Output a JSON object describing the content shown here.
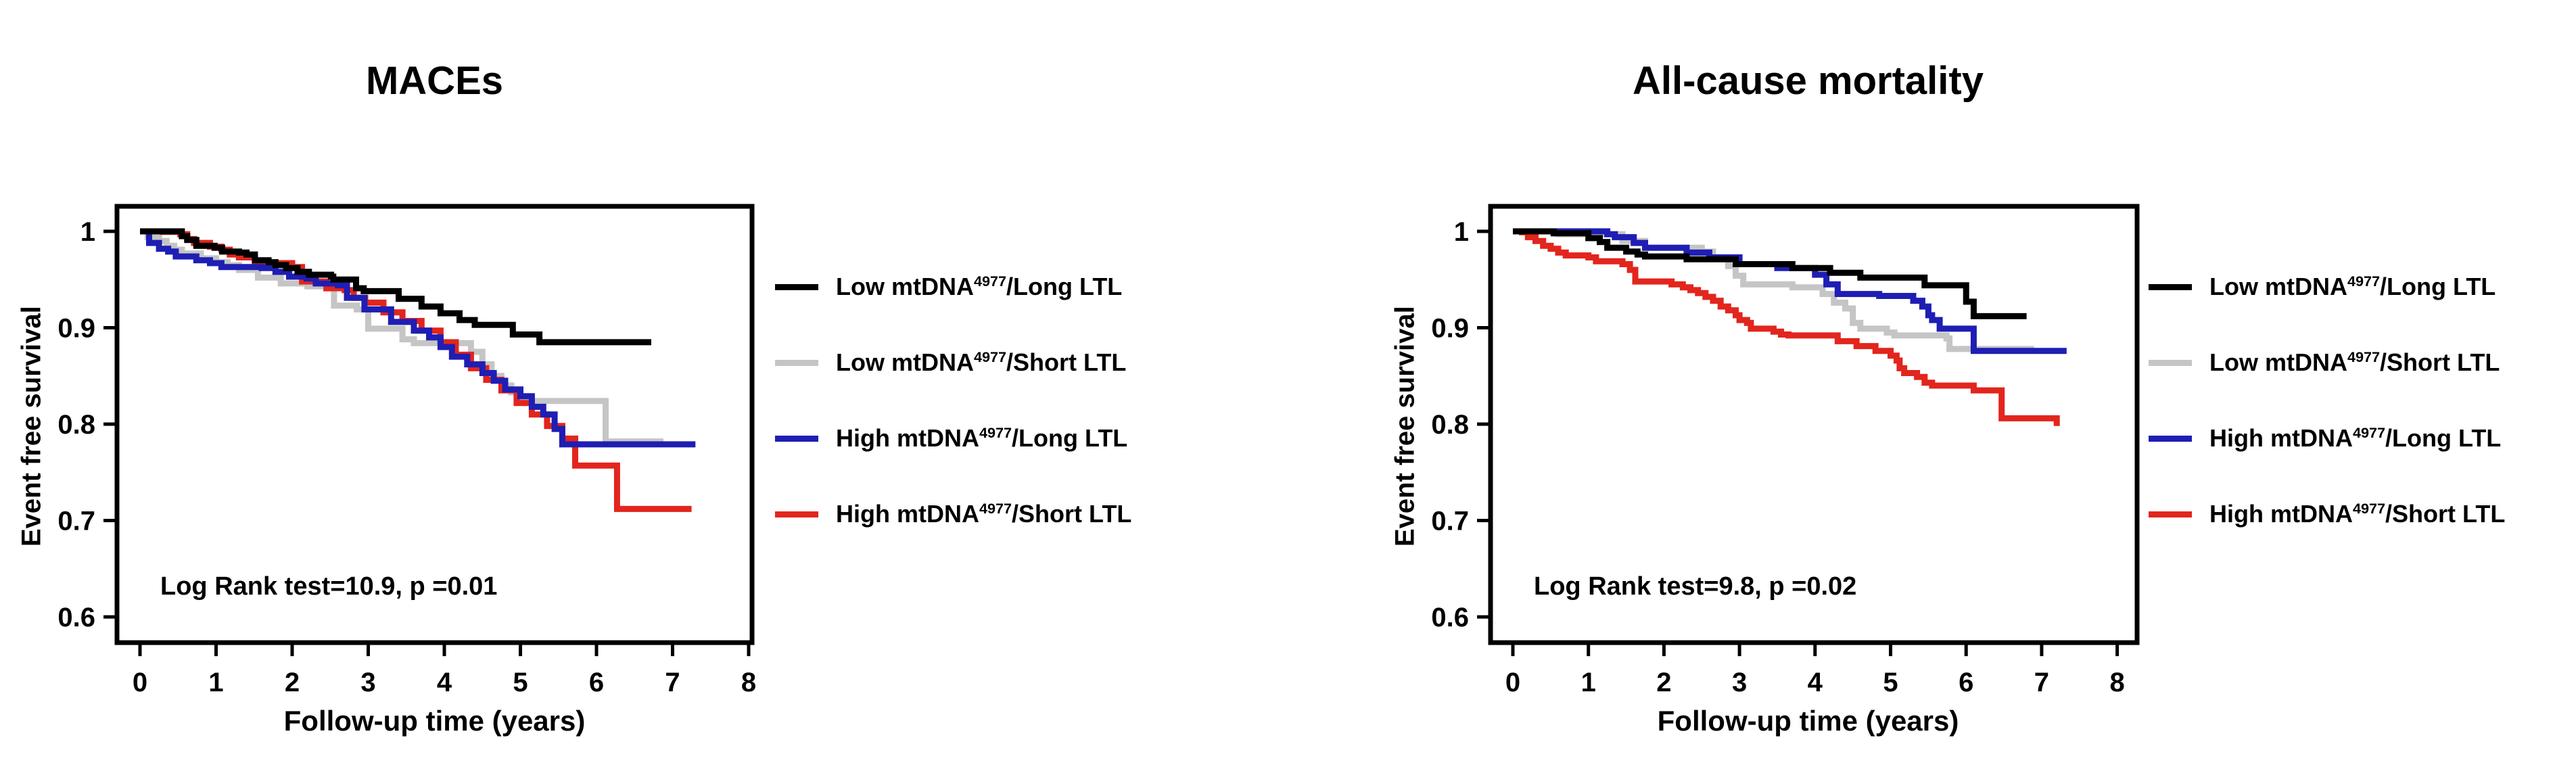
{
  "page": {
    "background": "#ffffff"
  },
  "colors": {
    "low_long": "#000000",
    "low_short": "#c5c5c5",
    "high_long": "#1e1eb4",
    "high_short": "#e2251d",
    "axis": "#000000"
  },
  "legend": {
    "items": [
      {
        "pre": "Low mtDNA",
        "sup": "4977",
        "post": "/Long LTL",
        "color": "#000000"
      },
      {
        "pre": "Low mtDNA",
        "sup": "4977",
        "post": "/Short LTL",
        "color": "#c5c5c5"
      },
      {
        "pre": "High mtDNA",
        "sup": "4977",
        "post": "/Long LTL",
        "color": "#1e1eb4"
      },
      {
        "pre": "High mtDNA",
        "sup": "4977",
        "post": "/Short LTL",
        "color": "#e2251d"
      }
    ]
  },
  "chart_data": [
    {
      "type": "line",
      "subtype": "kaplan-meier-step",
      "title": "MACEs",
      "xlabel": "Follow-up time (years)",
      "ylabel": "Event free survival",
      "annotation": "Log Rank test=10.9, p =0.01",
      "xlim": [
        0,
        8
      ],
      "ylim": [
        0.6,
        1.0
      ],
      "grid": false,
      "legend_position": "right",
      "xticks": [
        {
          "v": 0,
          "label": "0"
        },
        {
          "v": 1,
          "label": "1"
        },
        {
          "v": 2,
          "label": "2"
        },
        {
          "v": 3,
          "label": "3"
        },
        {
          "v": 4,
          "label": "4"
        },
        {
          "v": 5,
          "label": "5"
        },
        {
          "v": 6,
          "label": "6"
        },
        {
          "v": 7,
          "label": "7"
        },
        {
          "v": 8,
          "label": "8"
        }
      ],
      "yticks": [
        {
          "v": 1.0,
          "label": "1"
        },
        {
          "v": 0.9,
          "label": "0.9"
        },
        {
          "v": 0.8,
          "label": "0.8"
        },
        {
          "v": 0.7,
          "label": "0.7"
        },
        {
          "v": 0.6,
          "label": "0.6"
        }
      ],
      "series": [
        {
          "name": "Low mtDNA4977/Short LTL",
          "color": "#c5c5c5",
          "points": [
            [
              0,
              1
            ],
            [
              0.1,
              0.994
            ],
            [
              0.25,
              0.99
            ],
            [
              0.35,
              0.985
            ],
            [
              0.45,
              0.981
            ],
            [
              0.55,
              0.977
            ],
            [
              0.8,
              0.972
            ],
            [
              1.0,
              0.968
            ],
            [
              1.15,
              0.965
            ],
            [
              1.3,
              0.96
            ],
            [
              1.55,
              0.952
            ],
            [
              1.85,
              0.946
            ],
            [
              2.2,
              0.943
            ],
            [
              2.45,
              0.941
            ],
            [
              2.55,
              0.923
            ],
            [
              2.85,
              0.919
            ],
            [
              3.0,
              0.899
            ],
            [
              3.45,
              0.888
            ],
            [
              3.6,
              0.884
            ],
            [
              4.35,
              0.875
            ],
            [
              4.5,
              0.862
            ],
            [
              4.62,
              0.85
            ],
            [
              4.75,
              0.84
            ],
            [
              4.88,
              0.833
            ],
            [
              5.0,
              0.824
            ],
            [
              6.12,
              0.782
            ],
            [
              6.88,
              0.782
            ]
          ]
        },
        {
          "name": "High mtDNA4977/Short LTL",
          "color": "#e2251d",
          "points": [
            [
              0,
              1
            ],
            [
              0.3,
              0.9995
            ],
            [
              0.53,
              0.997
            ],
            [
              0.62,
              0.992
            ],
            [
              0.71,
              0.988
            ],
            [
              0.92,
              0.984
            ],
            [
              1.07,
              0.981
            ],
            [
              1.18,
              0.976
            ],
            [
              1.3,
              0.973
            ],
            [
              1.51,
              0.969
            ],
            [
              1.6,
              0.967
            ],
            [
              2.0,
              0.963
            ],
            [
              2.13,
              0.948
            ],
            [
              2.45,
              0.941
            ],
            [
              2.69,
              0.939
            ],
            [
              2.81,
              0.931
            ],
            [
              2.96,
              0.926
            ],
            [
              3.2,
              0.916
            ],
            [
              3.45,
              0.907
            ],
            [
              3.7,
              0.897
            ],
            [
              3.95,
              0.885
            ],
            [
              4.15,
              0.872
            ],
            [
              4.35,
              0.858
            ],
            [
              4.55,
              0.846
            ],
            [
              4.75,
              0.835
            ],
            [
              4.95,
              0.822
            ],
            [
              5.15,
              0.81
            ],
            [
              5.35,
              0.798
            ],
            [
              5.55,
              0.785
            ],
            [
              5.72,
              0.757
            ],
            [
              6.27,
              0.712
            ],
            [
              7.25,
              0.712
            ]
          ]
        },
        {
          "name": "High mtDNA4977/Long LTL",
          "color": "#1e1eb4",
          "points": [
            [
              0,
              1
            ],
            [
              0.12,
              0.988
            ],
            [
              0.25,
              0.982
            ],
            [
              0.37,
              0.979
            ],
            [
              0.47,
              0.974
            ],
            [
              0.74,
              0.97
            ],
            [
              0.92,
              0.967
            ],
            [
              1.07,
              0.963
            ],
            [
              1.6,
              0.962
            ],
            [
              1.78,
              0.958
            ],
            [
              1.96,
              0.953
            ],
            [
              2.19,
              0.951
            ],
            [
              2.31,
              0.946
            ],
            [
              2.6,
              0.944
            ],
            [
              2.72,
              0.931
            ],
            [
              2.95,
              0.919
            ],
            [
              3.3,
              0.906
            ],
            [
              3.6,
              0.897
            ],
            [
              3.8,
              0.89
            ],
            [
              3.95,
              0.88
            ],
            [
              4.1,
              0.87
            ],
            [
              4.3,
              0.862
            ],
            [
              4.5,
              0.853
            ],
            [
              4.65,
              0.845
            ],
            [
              4.8,
              0.836
            ],
            [
              5.0,
              0.829
            ],
            [
              5.15,
              0.818
            ],
            [
              5.3,
              0.81
            ],
            [
              5.45,
              0.795
            ],
            [
              5.55,
              0.779
            ],
            [
              7.3,
              0.779
            ]
          ]
        },
        {
          "name": "Low mtDNA4977/Long LTL",
          "color": "#000000",
          "points": [
            [
              0,
              1
            ],
            [
              0.26,
              1
            ],
            [
              0.55,
              0.995
            ],
            [
              0.62,
              0.991
            ],
            [
              0.74,
              0.985
            ],
            [
              0.98,
              0.983
            ],
            [
              1.08,
              0.979
            ],
            [
              1.3,
              0.978
            ],
            [
              1.4,
              0.976
            ],
            [
              1.51,
              0.97
            ],
            [
              1.69,
              0.968
            ],
            [
              1.78,
              0.965
            ],
            [
              1.92,
              0.962
            ],
            [
              2.07,
              0.958
            ],
            [
              2.22,
              0.955
            ],
            [
              2.51,
              0.953
            ],
            [
              2.54,
              0.95
            ],
            [
              2.84,
              0.941
            ],
            [
              2.94,
              0.938
            ],
            [
              3.4,
              0.93
            ],
            [
              3.7,
              0.922
            ],
            [
              3.95,
              0.915
            ],
            [
              4.2,
              0.908
            ],
            [
              4.4,
              0.903
            ],
            [
              4.9,
              0.893
            ],
            [
              5.25,
              0.885
            ],
            [
              6.72,
              0.885
            ]
          ]
        }
      ]
    },
    {
      "type": "line",
      "subtype": "kaplan-meier-step",
      "title": "All-cause mortality",
      "xlabel": "Follow-up time (years)",
      "ylabel": "Event free survival",
      "annotation": "Log Rank test=9.8, p =0.02",
      "xlim": [
        0,
        8
      ],
      "ylim": [
        0.6,
        1.0
      ],
      "grid": false,
      "legend_position": "right",
      "xticks": [
        {
          "v": 0,
          "label": "0"
        },
        {
          "v": 1,
          "label": "1"
        },
        {
          "v": 2,
          "label": "2"
        },
        {
          "v": 3,
          "label": "3"
        },
        {
          "v": 4,
          "label": "4"
        },
        {
          "v": 5,
          "label": "5"
        },
        {
          "v": 6,
          "label": "6"
        },
        {
          "v": 7,
          "label": "7"
        },
        {
          "v": 8,
          "label": "8"
        }
      ],
      "yticks": [
        {
          "v": 1.0,
          "label": "1"
        },
        {
          "v": 0.9,
          "label": "0.9"
        },
        {
          "v": 0.8,
          "label": "0.8"
        },
        {
          "v": 0.7,
          "label": "0.7"
        },
        {
          "v": 0.6,
          "label": "0.6"
        }
      ],
      "series": [
        {
          "name": "Low mtDNA4977/Short LTL",
          "color": "#c5c5c5",
          "points": [
            [
              0,
              1
            ],
            [
              0.6,
              0.997
            ],
            [
              1.45,
              0.99
            ],
            [
              1.75,
              0.983
            ],
            [
              2.5,
              0.979
            ],
            [
              2.65,
              0.973
            ],
            [
              2.85,
              0.964
            ],
            [
              2.95,
              0.954
            ],
            [
              3.05,
              0.945
            ],
            [
              3.7,
              0.942
            ],
            [
              4.1,
              0.935
            ],
            [
              4.25,
              0.926
            ],
            [
              4.4,
              0.92
            ],
            [
              4.5,
              0.905
            ],
            [
              4.6,
              0.899
            ],
            [
              4.95,
              0.895
            ],
            [
              5.05,
              0.892
            ],
            [
              5.74,
              0.889
            ],
            [
              5.78,
              0.878
            ],
            [
              6.86,
              0.877
            ]
          ]
        },
        {
          "name": "High mtDNA4977/Short LTL",
          "color": "#e2251d",
          "points": [
            [
              0,
              1
            ],
            [
              0.12,
              0.999
            ],
            [
              0.2,
              0.994
            ],
            [
              0.3,
              0.99
            ],
            [
              0.4,
              0.985
            ],
            [
              0.5,
              0.982
            ],
            [
              0.6,
              0.978
            ],
            [
              0.7,
              0.975
            ],
            [
              1.0,
              0.973
            ],
            [
              1.1,
              0.969
            ],
            [
              1.45,
              0.966
            ],
            [
              1.55,
              0.96
            ],
            [
              1.62,
              0.948
            ],
            [
              2.1,
              0.945
            ],
            [
              2.25,
              0.942
            ],
            [
              2.35,
              0.939
            ],
            [
              2.45,
              0.936
            ],
            [
              2.55,
              0.932
            ],
            [
              2.65,
              0.928
            ],
            [
              2.75,
              0.922
            ],
            [
              2.85,
              0.918
            ],
            [
              2.95,
              0.913
            ],
            [
              3.0,
              0.908
            ],
            [
              3.1,
              0.905
            ],
            [
              3.15,
              0.899
            ],
            [
              3.45,
              0.896
            ],
            [
              3.55,
              0.893
            ],
            [
              3.65,
              0.892
            ],
            [
              4.3,
              0.886
            ],
            [
              4.55,
              0.881
            ],
            [
              4.8,
              0.876
            ],
            [
              5.0,
              0.871
            ],
            [
              5.08,
              0.866
            ],
            [
              5.12,
              0.858
            ],
            [
              5.18,
              0.853
            ],
            [
              5.35,
              0.849
            ],
            [
              5.45,
              0.843
            ],
            [
              5.55,
              0.84
            ],
            [
              6.1,
              0.835
            ],
            [
              6.47,
              0.806
            ],
            [
              7.2,
              0.798
            ]
          ]
        },
        {
          "name": "High mtDNA4977/Long LTL",
          "color": "#1e1eb4",
          "points": [
            [
              0,
              1
            ],
            [
              1.25,
              0.997
            ],
            [
              1.35,
              0.994
            ],
            [
              1.6,
              0.988
            ],
            [
              1.75,
              0.983
            ],
            [
              2.3,
              0.978
            ],
            [
              2.6,
              0.973
            ],
            [
              3.0,
              0.966
            ],
            [
              3.5,
              0.962
            ],
            [
              4.0,
              0.955
            ],
            [
              4.15,
              0.945
            ],
            [
              4.3,
              0.935
            ],
            [
              4.85,
              0.933
            ],
            [
              5.3,
              0.928
            ],
            [
              5.42,
              0.922
            ],
            [
              5.5,
              0.913
            ],
            [
              5.55,
              0.908
            ],
            [
              5.65,
              0.899
            ],
            [
              6.1,
              0.876
            ],
            [
              7.33,
              0.876
            ]
          ]
        },
        {
          "name": "Low mtDNA4977/Long LTL",
          "color": "#000000",
          "points": [
            [
              0,
              1
            ],
            [
              0.54,
              0.998
            ],
            [
              1.0,
              0.993
            ],
            [
              1.15,
              0.989
            ],
            [
              1.25,
              0.983
            ],
            [
              1.5,
              0.979
            ],
            [
              1.65,
              0.976
            ],
            [
              1.75,
              0.974
            ],
            [
              2.3,
              0.971
            ],
            [
              2.95,
              0.966
            ],
            [
              3.7,
              0.962
            ],
            [
              4.2,
              0.957
            ],
            [
              4.6,
              0.952
            ],
            [
              5.45,
              0.944
            ],
            [
              6.0,
              0.927
            ],
            [
              6.1,
              0.912
            ],
            [
              6.8,
              0.912
            ]
          ]
        }
      ]
    }
  ]
}
